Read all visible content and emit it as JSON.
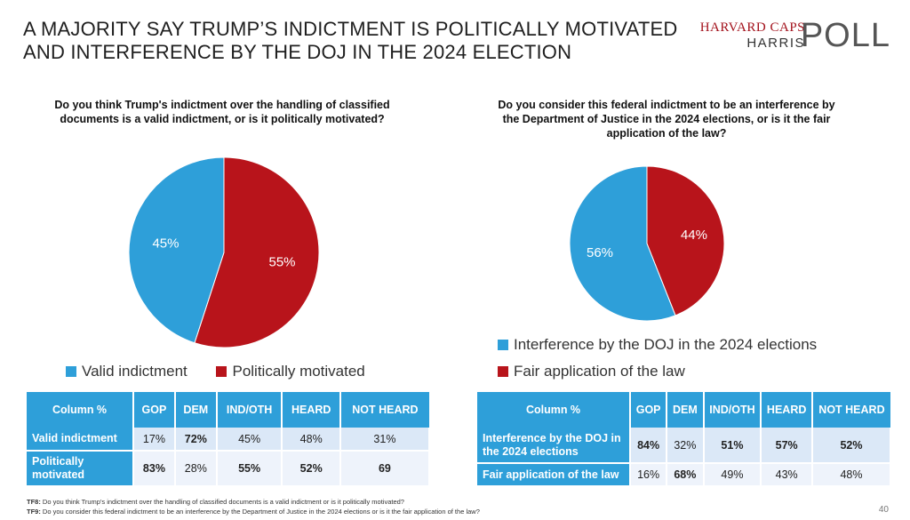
{
  "title_line1": "A MAJORITY SAY TRUMP’S INDICTMENT IS POLITICALLY MOTIVATED",
  "title_line2": "AND INTERFERENCE BY THE DOJ IN THE 2024 ELECTION",
  "logo": {
    "line1": "HARVARD CAPS",
    "line2": "HARRIS",
    "line3": "POLL"
  },
  "colors": {
    "blue": "#2e9fd9",
    "red": "#b8141b"
  },
  "chart_data": [
    {
      "type": "pie",
      "title": "Do you think Trump's indictment over the handling of classified documents is a valid indictment, or is it politically motivated?",
      "labels": [
        "Valid indictment",
        "Politically motivated"
      ],
      "values": [
        45,
        55
      ],
      "value_labels": [
        "45%",
        "55%"
      ],
      "colors": [
        "#2e9fd9",
        "#b8141b"
      ],
      "legend_placement": "bottom"
    },
    {
      "type": "pie",
      "title": "Do you consider this federal indictment to be an interference by the Department of Justice in the 2024 elections, or is it the fair application of the law?",
      "labels": [
        "Interference by the DOJ in the 2024 elections",
        "Fair application of the law"
      ],
      "values": [
        56,
        44
      ],
      "value_labels": [
        "56%",
        "44%"
      ],
      "colors": [
        "#2e9fd9",
        "#b8141b"
      ],
      "legend_placement": "bottom"
    },
    {
      "type": "table",
      "columns": [
        "Column %",
        "GOP",
        "DEM",
        "IND/OTH",
        "HEARD",
        "NOT HEARD"
      ],
      "rows": [
        {
          "label": "Valid indictment",
          "cells": [
            "17%",
            "72%",
            "45%",
            "48%",
            "31%"
          ],
          "bold": [
            false,
            true,
            false,
            false,
            false
          ]
        },
        {
          "label": "Politically motivated",
          "cells": [
            "83%",
            "28%",
            "55%",
            "52%",
            "69"
          ],
          "bold": [
            true,
            false,
            true,
            true,
            true
          ]
        }
      ]
    },
    {
      "type": "table",
      "columns": [
        "Column %",
        "GOP",
        "DEM",
        "IND/OTH",
        "HEARD",
        "NOT HEARD"
      ],
      "rows": [
        {
          "label": "Interference by the DOJ in the 2024 elections",
          "cells": [
            "84%",
            "32%",
            "51%",
            "57%",
            "52%"
          ],
          "bold": [
            true,
            false,
            true,
            true,
            true
          ]
        },
        {
          "label": "Fair application of the law",
          "cells": [
            "16%",
            "68%",
            "49%",
            "43%",
            "48%"
          ],
          "bold": [
            false,
            true,
            false,
            false,
            false
          ]
        }
      ]
    }
  ],
  "footnotes": [
    {
      "tag": "TF8:",
      "text": " Do you think Trump's indictment over the handling of classified documents is a valid indictment or is it politically motivated?"
    },
    {
      "tag": "TF9:",
      "text": " Do you consider this federal indictment to be an interference by the Department of Justice in the 2024 elections or is it the fair application of the law?"
    }
  ],
  "page_number": "40"
}
